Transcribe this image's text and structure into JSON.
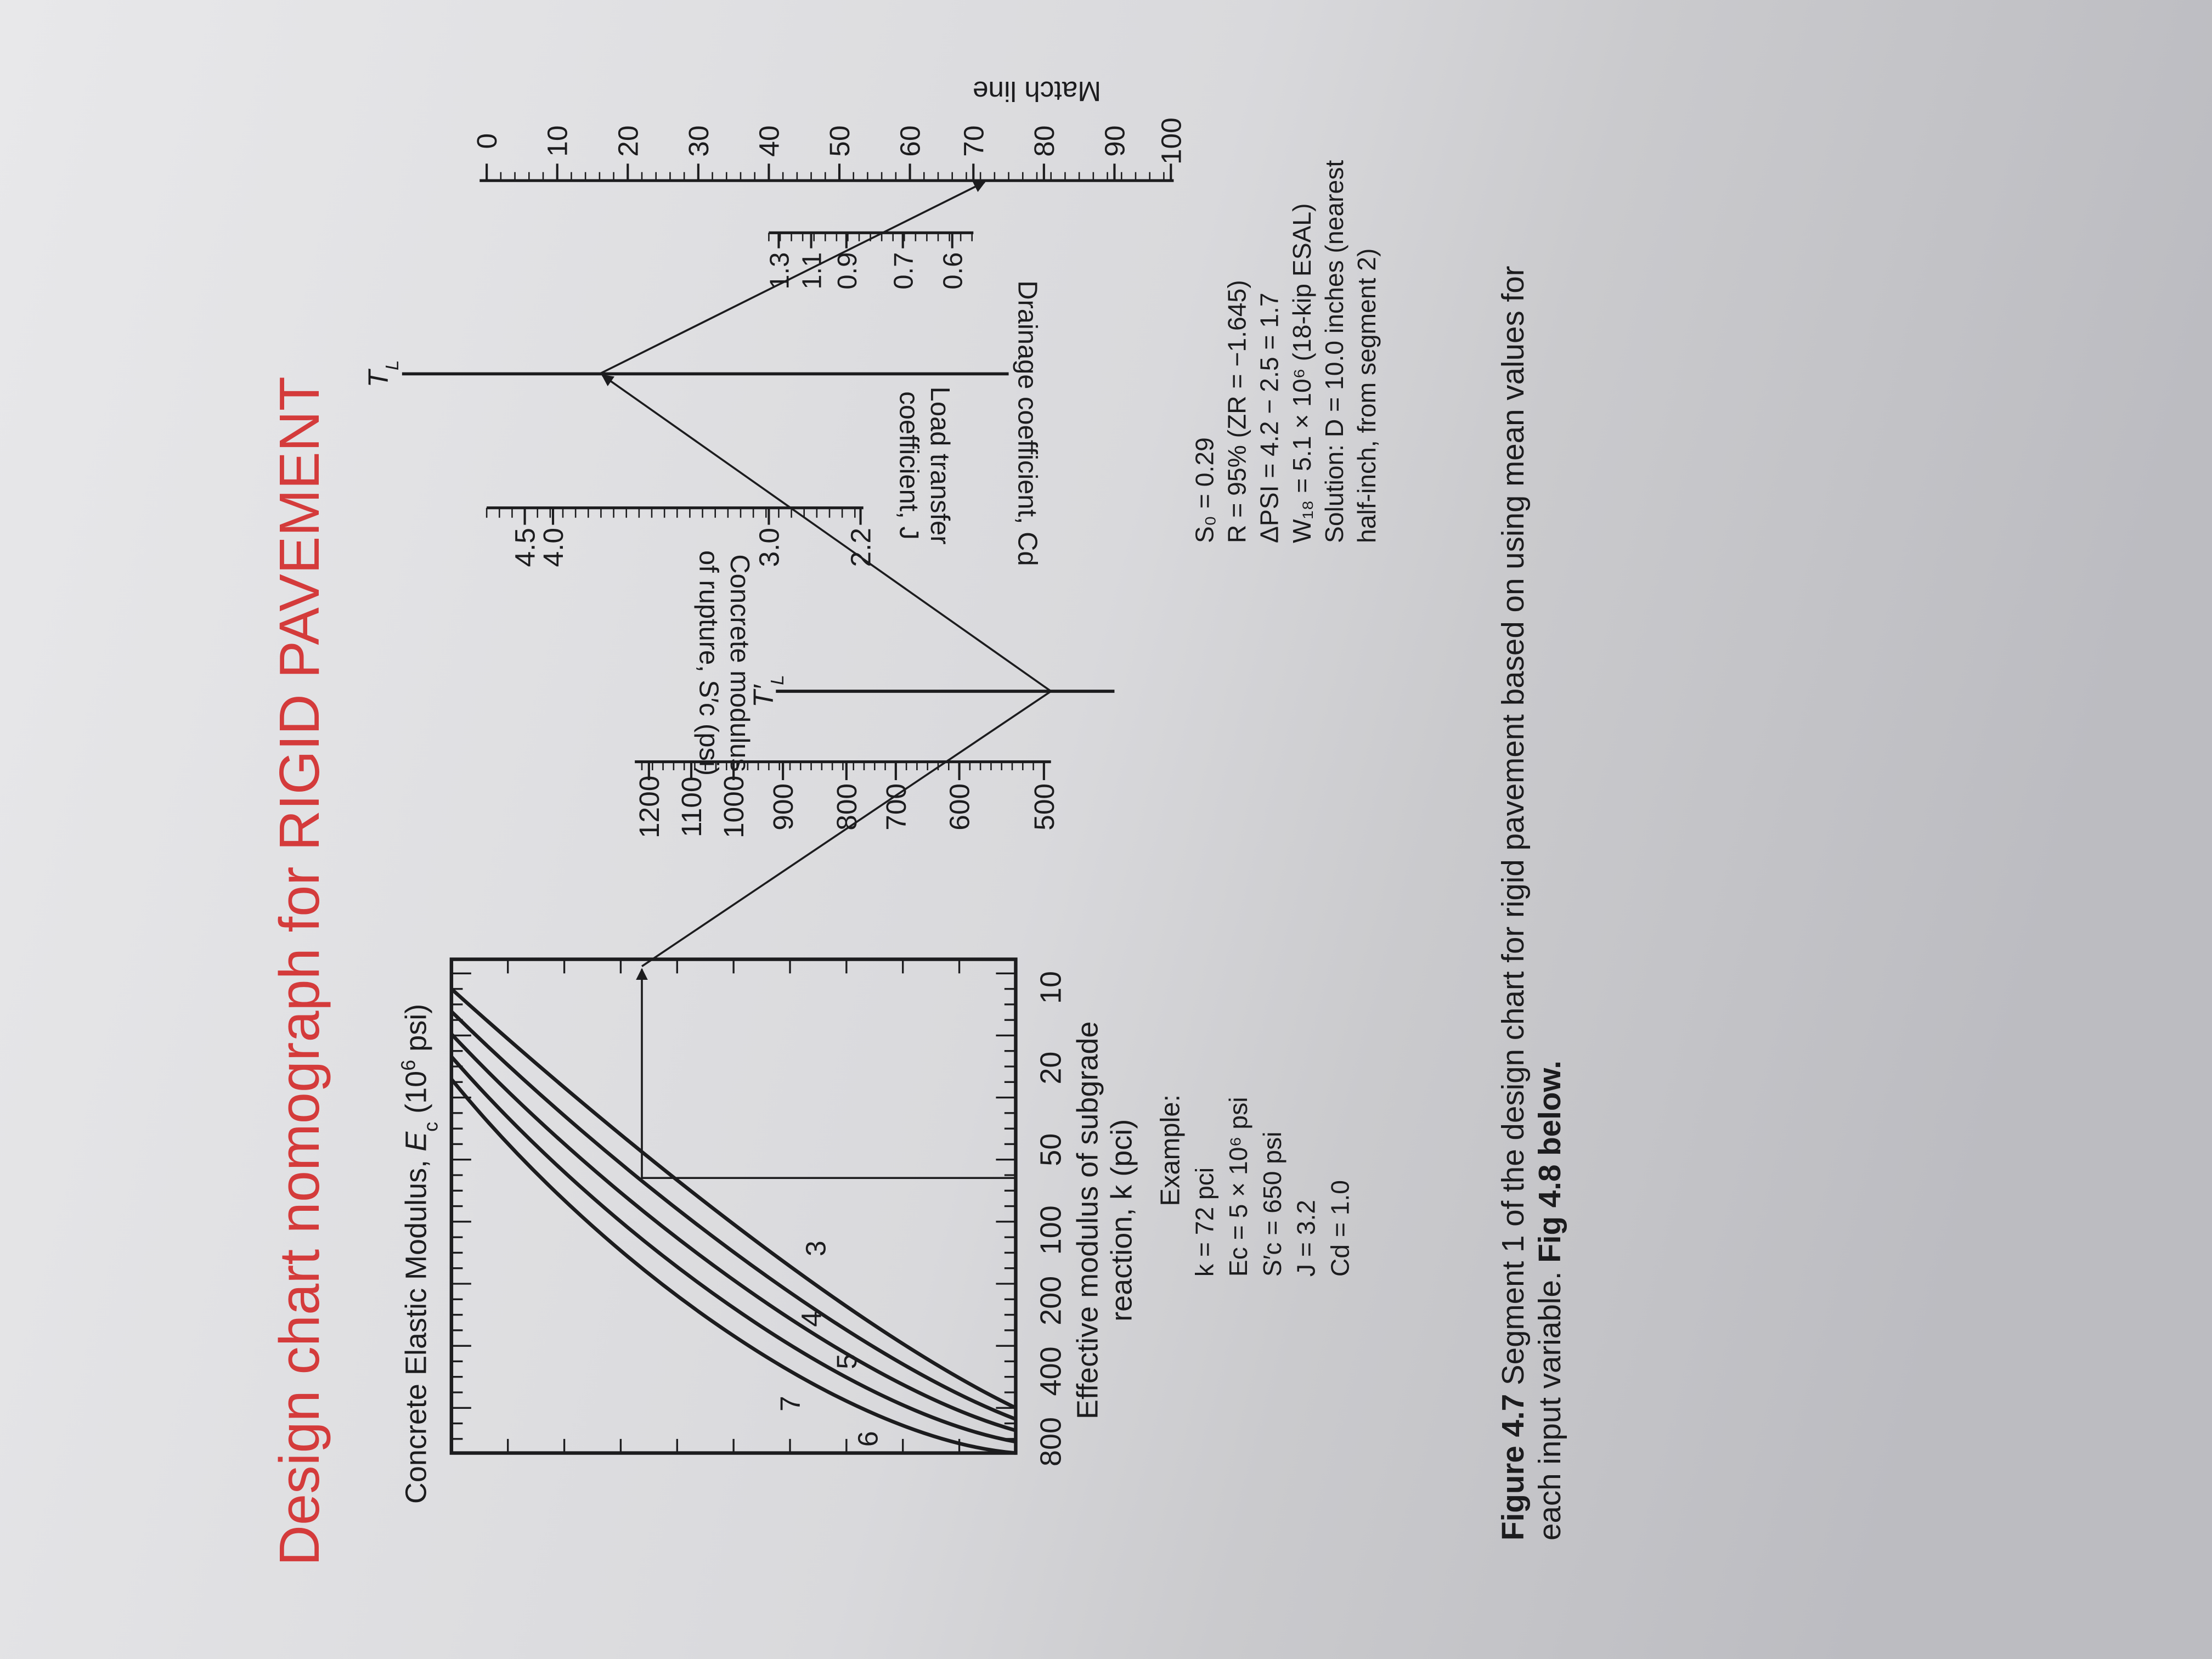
{
  "title": "Design chart nomograph for RIGID PAVEMENT",
  "nomograph": {
    "ec_label": [
      "Concrete Elastic Modulus, ",
      "E",
      "c",
      " (10",
      "6",
      " psi)"
    ],
    "ec_curves": [
      "7",
      "6",
      "5",
      "4",
      "3"
    ],
    "k_ticks": [
      "800",
      "400",
      "200",
      "100",
      "50",
      "20",
      "10"
    ],
    "k_label": [
      "Effective modulus of subgrade",
      "reaction, k (pci)"
    ],
    "sc_ticks": [
      "1200",
      "1100",
      "1000",
      "900",
      "800",
      "700",
      "600",
      "500"
    ],
    "sc_label": [
      "Concrete modulus",
      "of rupture, S′c (psi)"
    ],
    "tl_prime": [
      "T′",
      "L"
    ],
    "j_ticks": [
      "4.5",
      "4.0",
      "3.0",
      "2.2"
    ],
    "j_label": [
      "Load transfer",
      "coefficient, J"
    ],
    "tl": [
      "T",
      "L"
    ],
    "cd_ticks": [
      "1.3",
      "1.1",
      "0.9",
      "0.7",
      "0.6"
    ],
    "cd_label": "Drainage coefficient, Cd",
    "match_ticks": [
      "0",
      "10",
      "20",
      "30",
      "40",
      "50",
      "60",
      "70",
      "80",
      "90",
      "100"
    ],
    "match_label": "Match line"
  },
  "example": {
    "heading": "Example:",
    "inputs": [
      "k = 72 pci",
      "Ec = 5 × 10⁶ psi",
      "S′c = 650 psi",
      "J = 3.2",
      "Cd = 1.0"
    ],
    "more": [
      "S₀ = 0.29",
      "R = 95% (ZR = −1.645)",
      "ΔPSI = 4.2 − 2.5 = 1.7",
      "W₁₈ = 5.1 × 10⁶ (18-kip ESAL)",
      "Solution:  D = 10.0 inches (nearest",
      "half-inch, from segment 2)"
    ]
  },
  "caption": {
    "label": "Figure 4.7",
    "text": " Segment 1 of the design chart for rigid pavement based on using mean values for",
    "line2": "each input variable. ",
    "ref": "Fig 4.8 below."
  }
}
